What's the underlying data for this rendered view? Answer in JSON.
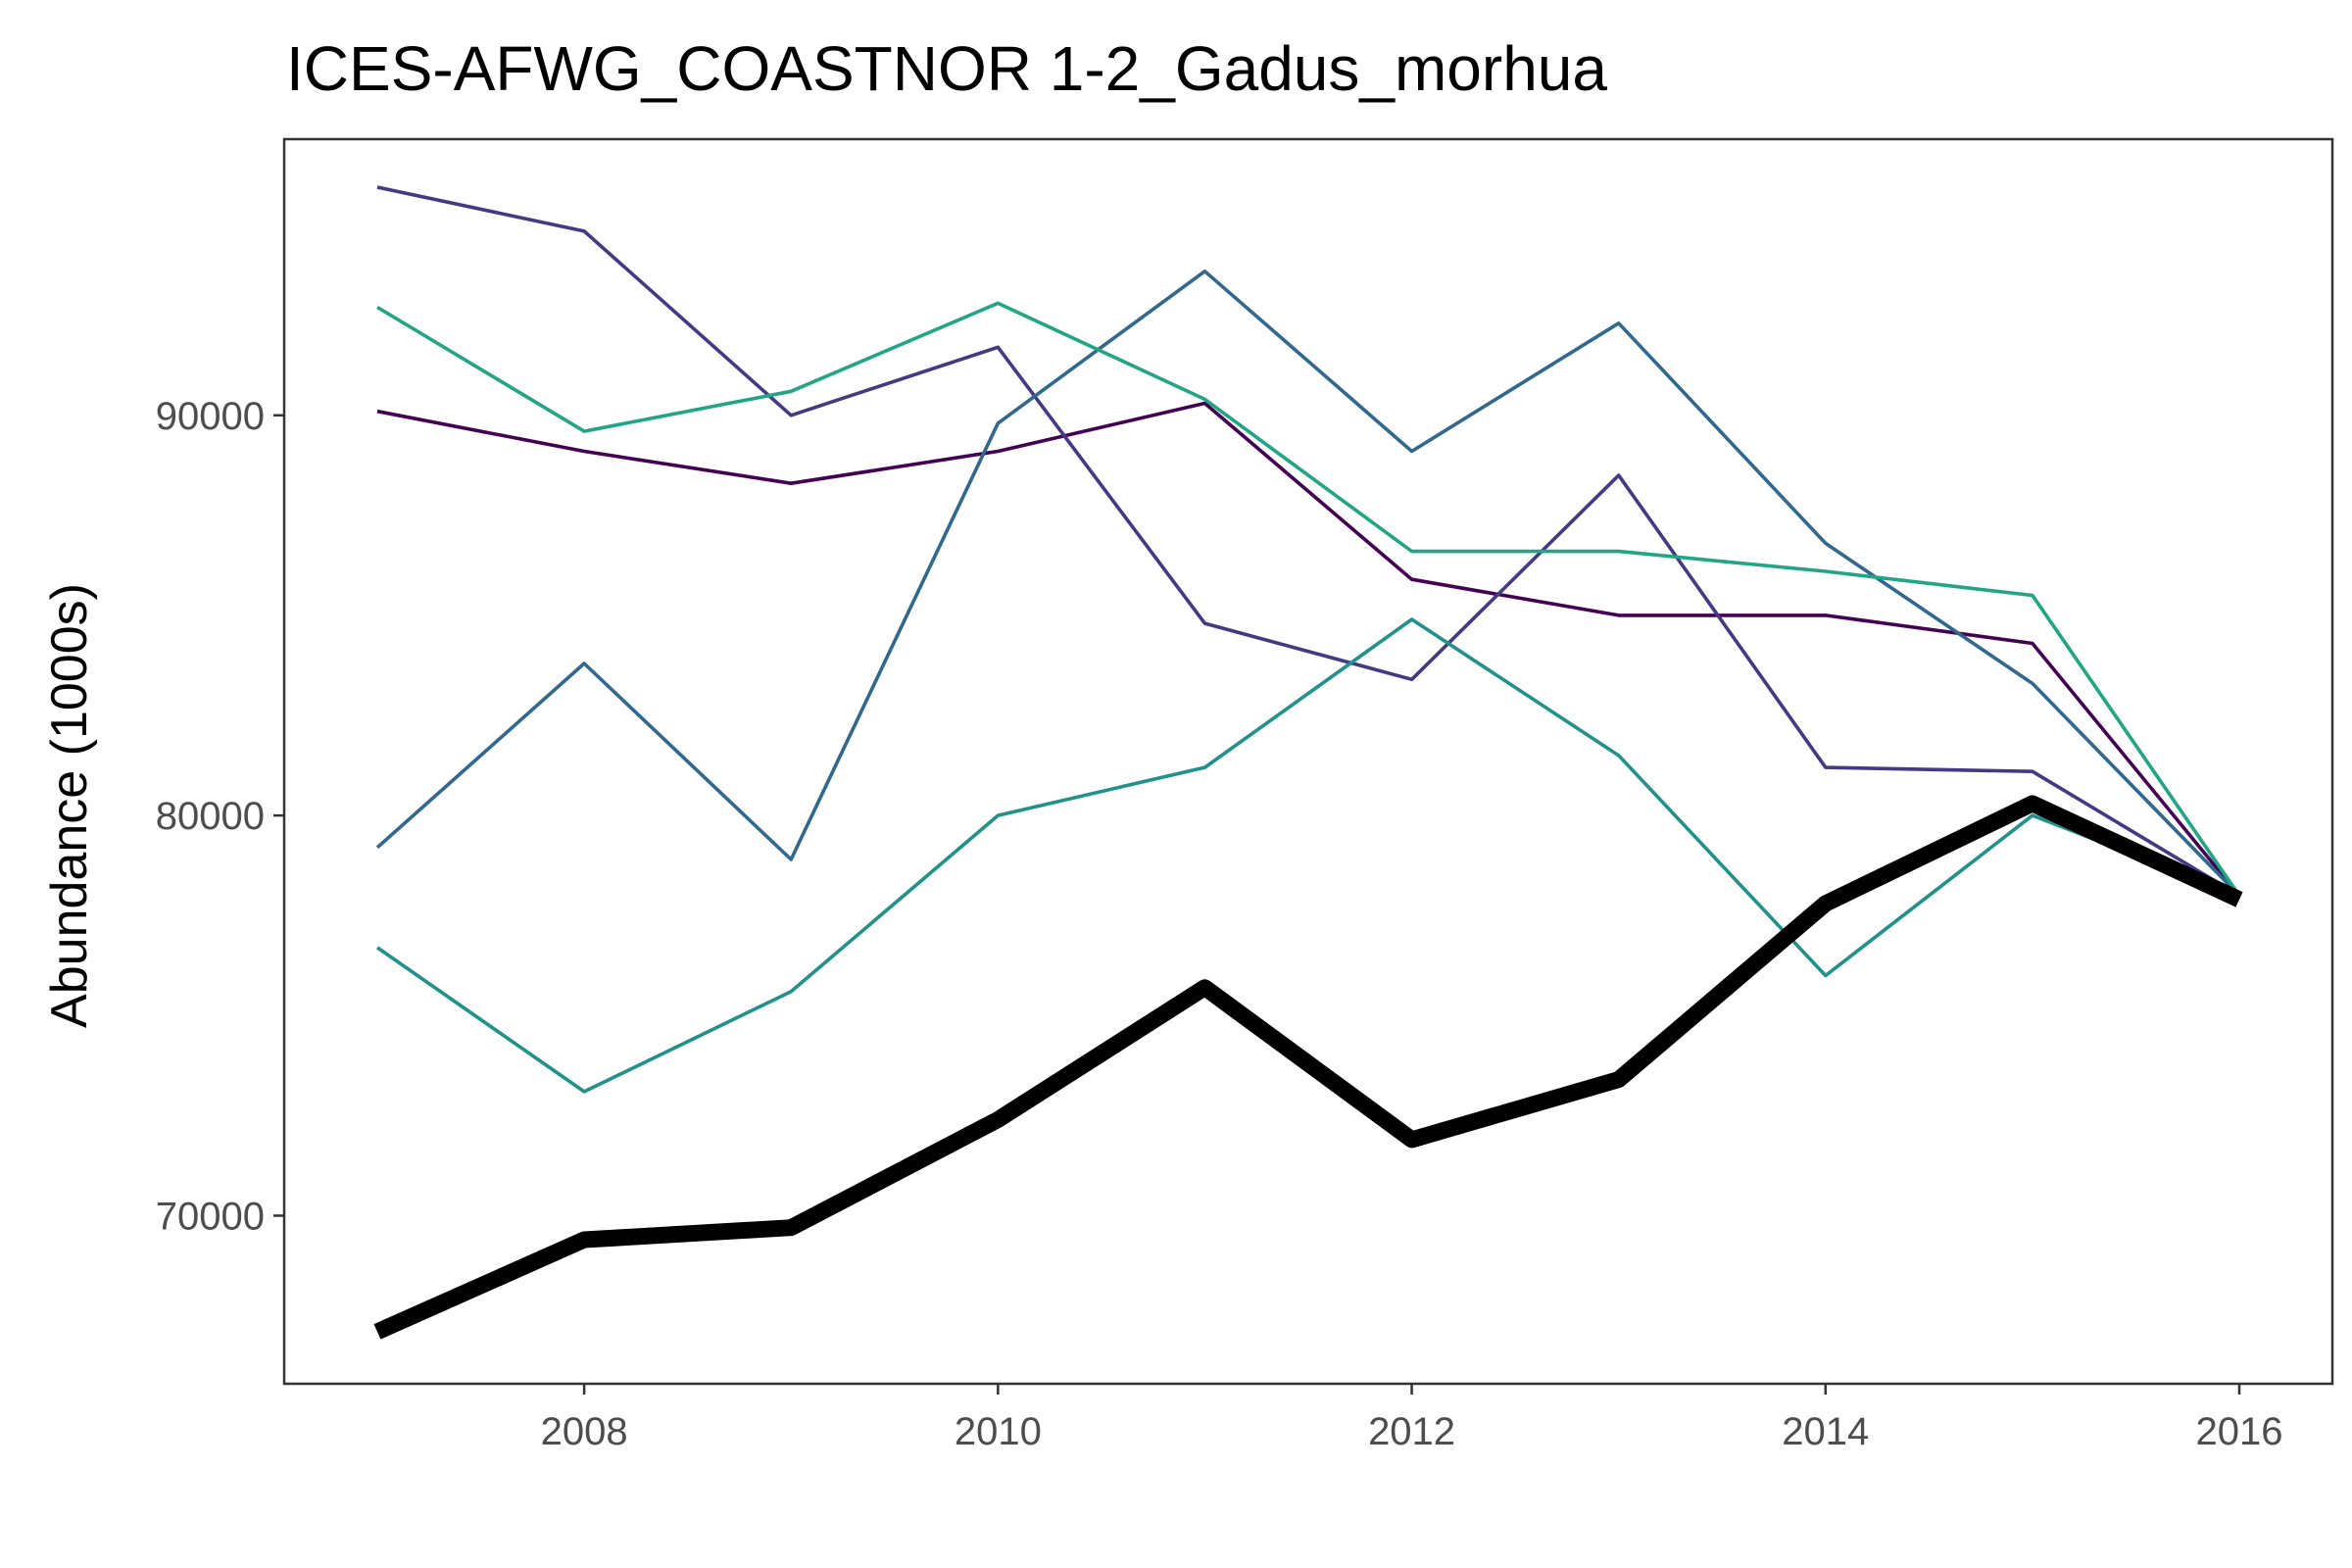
{
  "chart_data": {
    "type": "line",
    "title": "ICES-AFWG_COASTNOR 1-2_Gadus_morhua",
    "xlabel": "",
    "ylabel": "Abundance (1000s)",
    "x": [
      2007,
      2008,
      2009,
      2010,
      2011,
      2012,
      2013,
      2014,
      2015,
      2016
    ],
    "xlim": [
      2006.55,
      2016.45
    ],
    "ylim": [
      65800,
      96900
    ],
    "x_ticks": [
      2008,
      2010,
      2012,
      2014,
      2016
    ],
    "y_ticks": [
      70000,
      80000,
      90000
    ],
    "x_tick_labels": [
      "2008",
      "2010",
      "2012",
      "2014",
      "2016"
    ],
    "y_tick_labels": [
      "70000",
      "80000",
      "90000"
    ],
    "grid": false,
    "legend": "none",
    "series": [
      {
        "color": "#440154",
        "width": "thin",
        "values": [
          90100,
          89100,
          88300,
          89100,
          90300,
          85900,
          85000,
          85000,
          84300,
          78000
        ]
      },
      {
        "color": "#443983",
        "width": "thin",
        "values": [
          95700,
          94600,
          90000,
          91700,
          84800,
          83400,
          88500,
          81200,
          81100,
          78000
        ]
      },
      {
        "color": "#31688e",
        "width": "thin",
        "values": [
          79200,
          83800,
          78900,
          89800,
          93600,
          89100,
          92300,
          86800,
          83300,
          78000
        ]
      },
      {
        "color": "#21918c",
        "width": "thin",
        "values": [
          76700,
          73100,
          75600,
          80000,
          81200,
          84900,
          81500,
          76000,
          80000,
          78000
        ]
      },
      {
        "color": "#21a585",
        "width": "thin",
        "values": [
          92700,
          89600,
          90600,
          92800,
          90400,
          86600,
          86600,
          86100,
          85500,
          78000
        ]
      },
      {
        "color": "#000000",
        "width": "thick",
        "values": [
          67100,
          69400,
          69700,
          72400,
          75700,
          71900,
          73400,
          77800,
          80300,
          77900
        ]
      }
    ]
  }
}
